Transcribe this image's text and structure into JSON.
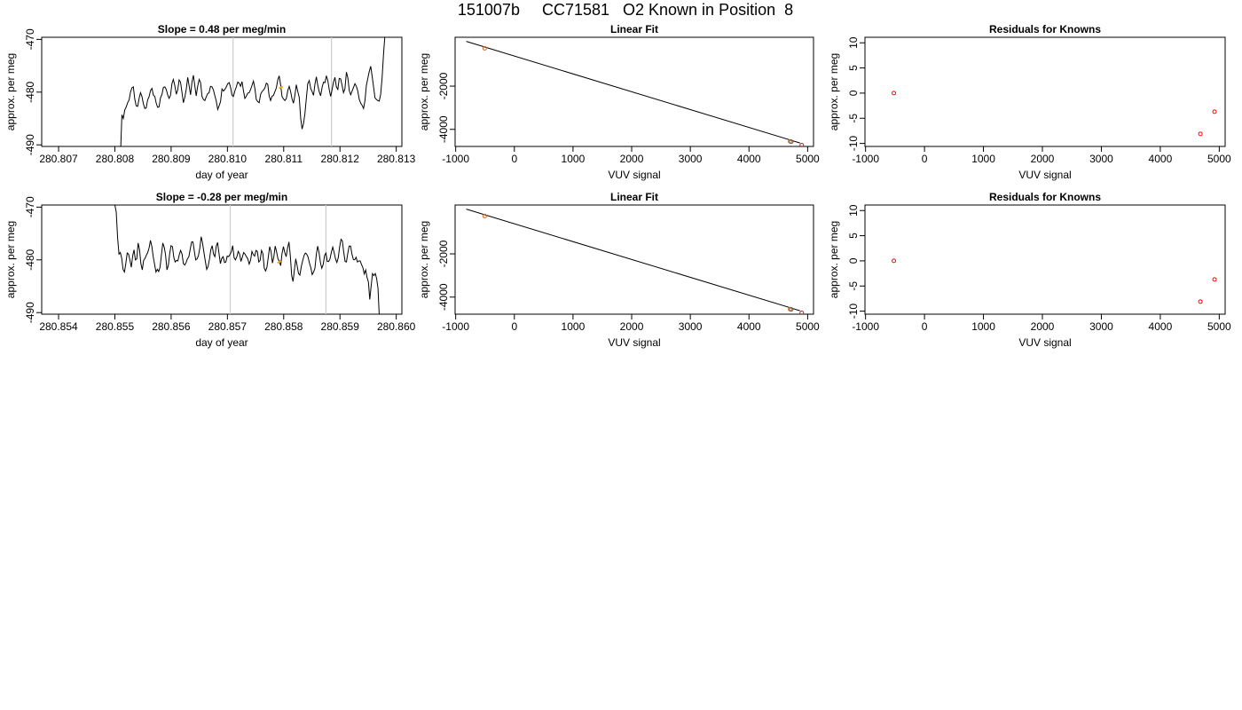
{
  "figure": {
    "title": "151007b     CC71581   O2 Known in Position  8"
  },
  "chart_data": [
    {
      "type": "line",
      "title": "Slope =  0.48  per meg/min",
      "xlabel": "day of year",
      "ylabel": "approx. per meg",
      "xlim": [
        280.8067,
        280.8131
      ],
      "ylim": [
        -490.3,
        -469.6
      ],
      "x_ticks": [
        "280.807",
        "280.808",
        "280.809",
        "280.810",
        "280.811",
        "280.812",
        "280.813"
      ],
      "y_ticks": [
        "-470",
        "-480",
        "-490"
      ],
      "vlines_x": [
        280.8101,
        280.81185
      ],
      "x_start": 280.8081,
      "x_end": 280.8128,
      "series": [
        {
          "values": [
            -492,
            -484.3,
            -485,
            -483.4,
            -482.8,
            -482,
            -481.5,
            -480,
            -479.2,
            -479,
            -481.3,
            -482.6,
            -482.7,
            -481.2,
            -480.1,
            -480.8,
            -482.2,
            -483.1,
            -483,
            -481.5,
            -480.9,
            -479.7,
            -479.3,
            -480.6,
            -480.8,
            -482.1,
            -482.9,
            -482.8,
            -481.1,
            -480.4,
            -479.1,
            -479,
            -479.5,
            -480.5,
            -481.2,
            -480.6,
            -478.4,
            -477.6,
            -478.8,
            -480.4,
            -479.6,
            -477.7,
            -478.1,
            -480,
            -482,
            -481,
            -479.5,
            -477.2,
            -478.8,
            -480.5,
            -478.1,
            -476.8,
            -478.8,
            -480.7,
            -478.9,
            -477.6,
            -478.2,
            -480.8,
            -481.4,
            -481.6,
            -480.9,
            -480.3,
            -480.1,
            -478.9,
            -479,
            -479.6,
            -480.7,
            -481.7,
            -483.3,
            -482.6,
            -481.8,
            -479.4,
            -479.8,
            -479.5,
            -479,
            -478.4,
            -478.2,
            -479.1,
            -480.6,
            -480.8,
            -479.8,
            -479,
            -478.1,
            -478.3,
            -478.9,
            -478,
            -479.7,
            -481.2,
            -480.8,
            -480.2,
            -480.1,
            -479.5,
            -478.7,
            -477.9,
            -479.3,
            -481.4,
            -481.8,
            -482,
            -480.4,
            -479.9,
            -479.6,
            -479.2,
            -478.3,
            -478.5,
            -480.7,
            -481.6,
            -480.8,
            -480.6,
            -479.9,
            -479.2,
            -477.7,
            -476.9,
            -478.6,
            -480.8,
            -481.3,
            -481.6,
            -481.2,
            -479.7,
            -478.9,
            -479.9,
            -481.3,
            -482.1,
            -480.6,
            -478.6,
            -479.9,
            -481,
            -484.9,
            -487,
            -486,
            -484.1,
            -481.2,
            -478.4,
            -477.8,
            -479.3,
            -479.9,
            -480.6,
            -478.5,
            -477.1,
            -478.7,
            -479.9,
            -480.7,
            -479.1,
            -478.1,
            -478.2,
            -476.9,
            -477.8,
            -479.5,
            -480.8,
            -479.6,
            -478.1,
            -477.2,
            -479,
            -479.5,
            -477.4,
            -477.5,
            -478.7,
            -480.1,
            -479.4,
            -476.2,
            -477.3,
            -479.7,
            -480.5,
            -479.8,
            -479.1,
            -478.4,
            -478.9,
            -479.8,
            -481.4,
            -482.1,
            -482.5,
            -483.1,
            -481.6,
            -478.7,
            -477.4,
            -476.1,
            -475.1,
            -477,
            -479,
            -481.1,
            -481.4,
            -481.6,
            -481.7,
            -480.4,
            -477.3,
            -472.6,
            -469
          ]
        }
      ],
      "highlight": {
        "x": 280.81095,
        "y": -479.1,
        "color": "#ffa500"
      },
      "highlight_points": [
        [
          280.81092,
          -479.3
        ],
        [
          280.81098,
          -478.9
        ]
      ]
    },
    {
      "type": "scatter",
      "title": "Linear Fit",
      "xlabel": "VUV signal",
      "ylabel": "approx. per meg",
      "xlim": [
        -1010,
        5100
      ],
      "ylim": [
        -4790,
        260
      ],
      "x_ticks": [
        "-1000",
        "0",
        "1000",
        "2000",
        "3000",
        "4000",
        "5000"
      ],
      "y_ticks": [
        "-2000",
        "-4000"
      ],
      "fit_line": [
        [
          -820,
          70
        ],
        [
          4870,
          -4630
        ]
      ],
      "points": [
        {
          "x": -505,
          "y": -250,
          "color": "#d2691e"
        },
        {
          "x": 4700,
          "y": -4560,
          "color": "#d2691e"
        },
        {
          "x": 4720,
          "y": -4570,
          "color": "#555555"
        },
        {
          "x": 4900,
          "y": -4730,
          "color": "#b22222"
        }
      ]
    },
    {
      "type": "scatter",
      "title": "Residuals for Knowns",
      "xlabel": "VUV signal",
      "ylabel": "approx. per meg",
      "xlim": [
        -1010,
        5100
      ],
      "ylim": [
        -10.6,
        11.1
      ],
      "x_ticks": [
        "-1000",
        "0",
        "1000",
        "2000",
        "3000",
        "4000",
        "5000"
      ],
      "y_ticks": [
        "10",
        "5",
        "0",
        "-5",
        "-10"
      ],
      "points": [
        {
          "x": -520,
          "y": 0.0,
          "color": "#ff0000"
        },
        {
          "x": 4680,
          "y": -8.1,
          "color": "#ff0000"
        },
        {
          "x": 4920,
          "y": -3.7,
          "color": "#ff0000"
        }
      ]
    },
    {
      "type": "line",
      "title": "Slope =  -0.28  per meg/min",
      "xlabel": "day of year",
      "ylabel": "approx. per meg",
      "xlim": [
        280.8537,
        280.8601
      ],
      "ylim": [
        -490.3,
        -469.6
      ],
      "x_ticks": [
        "280.854",
        "280.855",
        "280.856",
        "280.857",
        "280.858",
        "280.859",
        "280.860"
      ],
      "y_ticks": [
        "-470",
        "-480",
        "-490"
      ],
      "vlines_x": [
        280.85705,
        280.85875
      ],
      "x_start": 280.855,
      "x_end": 280.8597,
      "series": [
        {
          "values": [
            -469.6,
            -470.9,
            -475.9,
            -478.9,
            -478.6,
            -479.7,
            -481.8,
            -482.3,
            -480.7,
            -478.7,
            -478.9,
            -480.1,
            -481.4,
            -479.2,
            -478.1,
            -480,
            -479.8,
            -476.8,
            -478.1,
            -480.7,
            -481.9,
            -480.1,
            -479.7,
            -479.1,
            -478.6,
            -477.7,
            -476.3,
            -477.5,
            -479.4,
            -480.9,
            -482.3,
            -481.8,
            -482.2,
            -481.4,
            -479,
            -476.8,
            -477.6,
            -479,
            -481.9,
            -481.1,
            -478.8,
            -477.3,
            -477.5,
            -479.5,
            -480.4,
            -480.1,
            -480.2,
            -479,
            -478.2,
            -478.9,
            -480.7,
            -481,
            -480.5,
            -479.8,
            -479.4,
            -478,
            -476.6,
            -476.6,
            -478.4,
            -480,
            -479.8,
            -479.2,
            -477.8,
            -475.6,
            -476.8,
            -478.6,
            -480.2,
            -481.8,
            -481.3,
            -479.9,
            -478.1,
            -477.3,
            -478.9,
            -479.4,
            -477.4,
            -476.7,
            -478.8,
            -480.7,
            -479.7,
            -479.4,
            -480.5,
            -480.4,
            -479.3,
            -479.4,
            -479,
            -478.4,
            -477.3,
            -479.6,
            -480,
            -479.4,
            -478.4,
            -478.9,
            -480.3,
            -479.5,
            -478.6,
            -478.9,
            -479.4,
            -479.8,
            -480.8,
            -480.1,
            -478.4,
            -479,
            -479.3,
            -478.2,
            -478.4,
            -480.4,
            -480.1,
            -478.2,
            -478.8,
            -481.6,
            -482.1,
            -481.4,
            -479.4,
            -477.5,
            -478.5,
            -480.6,
            -479.4,
            -477.4,
            -478.5,
            -479.8,
            -480.3,
            -481.1,
            -478.8,
            -477.5,
            -478.6,
            -479.4,
            -477.8,
            -476.6,
            -479.1,
            -483,
            -484.1,
            -482,
            -479.8,
            -481.1,
            -482.6,
            -482.9,
            -481.3,
            -480.2,
            -479.2,
            -478.7,
            -478.9,
            -479.5,
            -480.6,
            -481.5,
            -482.8,
            -482.3,
            -481.6,
            -478.9,
            -477.4,
            -478.7,
            -480.5,
            -481.6,
            -480.9,
            -479.2,
            -478.7,
            -480.3,
            -480.3,
            -479.8,
            -478.5,
            -477.6,
            -478.6,
            -479.8,
            -480.5,
            -479.6,
            -477.6,
            -476.1,
            -476.4,
            -478.6,
            -480.3,
            -480.4,
            -478.7,
            -477.4,
            -477.4,
            -478.9,
            -479.9,
            -480,
            -479.5,
            -480.4,
            -480.2,
            -480.2,
            -480.9,
            -481.5,
            -482.7,
            -481.9,
            -483.3,
            -484.2,
            -487.5,
            -484.9,
            -482.6,
            -483,
            -482.6,
            -483.5,
            -485.4,
            -491
          ]
        }
      ],
      "highlight": {
        "x": 280.85792,
        "y": -480.4,
        "color": "#ffa500"
      },
      "highlight_points": [
        [
          280.85789,
          -480.6
        ],
        [
          280.85795,
          -480.2
        ]
      ]
    },
    {
      "type": "scatter",
      "title": "Linear Fit",
      "xlabel": "VUV signal",
      "ylabel": "approx. per meg",
      "xlim": [
        -1010,
        5100
      ],
      "ylim": [
        -4790,
        260
      ],
      "x_ticks": [
        "-1000",
        "0",
        "1000",
        "2000",
        "3000",
        "4000",
        "5000"
      ],
      "y_ticks": [
        "-2000",
        "-4000"
      ],
      "fit_line": [
        [
          -820,
          70
        ],
        [
          4870,
          -4630
        ]
      ],
      "points": [
        {
          "x": -505,
          "y": -250,
          "color": "#d2691e"
        },
        {
          "x": 4700,
          "y": -4560,
          "color": "#d2691e"
        },
        {
          "x": 4720,
          "y": -4570,
          "color": "#555555"
        },
        {
          "x": 4900,
          "y": -4730,
          "color": "#b22222"
        }
      ]
    },
    {
      "type": "scatter",
      "title": "Residuals for Knowns",
      "xlabel": "VUV signal",
      "ylabel": "approx. per meg",
      "xlim": [
        -1010,
        5100
      ],
      "ylim": [
        -10.6,
        11.1
      ],
      "x_ticks": [
        "-1000",
        "0",
        "1000",
        "2000",
        "3000",
        "4000",
        "5000"
      ],
      "y_ticks": [
        "10",
        "5",
        "0",
        "-5",
        "-10"
      ],
      "points": [
        {
          "x": -520,
          "y": 0.0,
          "color": "#ff0000"
        },
        {
          "x": 4680,
          "y": -8.1,
          "color": "#ff0000"
        },
        {
          "x": 4920,
          "y": -3.7,
          "color": "#ff0000"
        }
      ]
    }
  ]
}
